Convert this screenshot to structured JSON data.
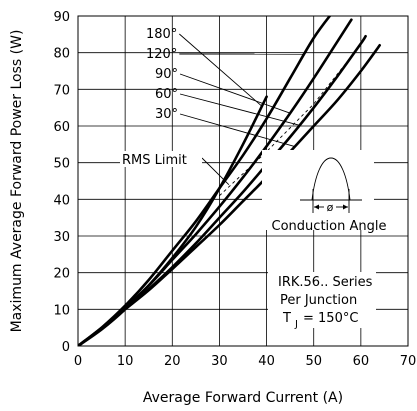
{
  "chart_data": {
    "type": "line",
    "xlabel": "Average Forward Current (A)",
    "ylabel": "Maximum Average Forward Power Loss (W)",
    "xlim": [
      0,
      70
    ],
    "ylim": [
      0,
      90
    ],
    "x_ticks": [
      "0",
      "10",
      "20",
      "30",
      "40",
      "50",
      "60",
      "70"
    ],
    "y_ticks": [
      "0",
      "10",
      "20",
      "30",
      "40",
      "50",
      "60",
      "70",
      "80",
      "90"
    ],
    "grid": true,
    "series": [
      {
        "name": "180°",
        "x": [
          0,
          5,
          10,
          15,
          20,
          25,
          30,
          35,
          40
        ],
        "y": [
          0,
          4.5,
          10,
          16.5,
          24,
          32.5,
          43,
          55,
          68
        ]
      },
      {
        "name": "120°",
        "x": [
          0,
          5,
          10,
          15,
          20,
          25,
          30,
          35,
          40,
          45,
          50,
          54
        ],
        "y": [
          0,
          5,
          11,
          18,
          26,
          34,
          43,
          52,
          62,
          73,
          84,
          91
        ]
      },
      {
        "name": "90°",
        "x": [
          0,
          5,
          10,
          15,
          20,
          25,
          30,
          35,
          40,
          45,
          50,
          55,
          58
        ],
        "y": [
          0,
          5,
          10.5,
          16.5,
          23.5,
          30.5,
          38,
          46,
          54.5,
          63.5,
          73,
          83,
          89
        ]
      },
      {
        "name": "60°",
        "x": [
          0,
          5,
          10,
          15,
          20,
          25,
          30,
          35,
          40,
          45,
          50,
          55,
          60,
          61
        ],
        "y": [
          0,
          4.8,
          10,
          15.5,
          21.5,
          28,
          35,
          42,
          49.5,
          57,
          65,
          73.5,
          82.5,
          84.5
        ]
      },
      {
        "name": "30°",
        "x": [
          0,
          5,
          10,
          15,
          20,
          25,
          30,
          35,
          40,
          45,
          50,
          55,
          60,
          64
        ],
        "y": [
          0,
          4.8,
          10,
          15.2,
          21,
          27,
          33,
          39.5,
          46,
          53,
          60,
          67,
          75,
          82
        ]
      }
    ],
    "rms_limit": {
      "label": "RMS Limit",
      "x": [
        30,
        40,
        50,
        58
      ],
      "y": [
        41,
        53,
        66,
        79
      ]
    },
    "inset": {
      "symbol": "ø",
      "label": "Conduction Angle"
    },
    "notes": [
      "IRK.56.. Series",
      "Per Junction",
      "T",
      "J",
      "= 150°C"
    ]
  }
}
